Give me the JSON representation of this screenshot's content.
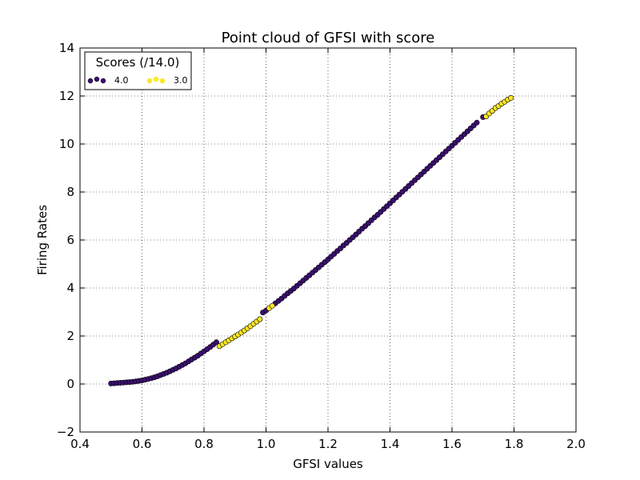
{
  "chart_data": {
    "type": "scatter",
    "title": "Point cloud of GFSI with score",
    "xlabel": "GFSI values",
    "ylabel": "Firing Rates",
    "xlim": [
      0.4,
      2.0
    ],
    "ylim": [
      -2,
      14
    ],
    "xticks": [
      "0.4",
      "0.6",
      "0.8",
      "1.0",
      "1.2",
      "1.4",
      "1.6",
      "1.8",
      "2.0"
    ],
    "yticks": [
      "−2",
      "0",
      "2",
      "4",
      "6",
      "8",
      "10",
      "12",
      "14"
    ],
    "grid": true,
    "legend": {
      "title": "Scores (/14.0)",
      "placement": "top-left",
      "entries": [
        {
          "label": "4.0",
          "color": "#3b0f70"
        },
        {
          "label": "3.0",
          "color": "#fde725"
        }
      ]
    },
    "series": [
      {
        "name": "4.0",
        "color": "#3b0f70",
        "x": [
          0.5,
          0.51,
          0.52,
          0.53,
          0.54,
          0.55,
          0.56,
          0.57,
          0.58,
          0.59,
          0.6,
          0.61,
          0.62,
          0.63,
          0.64,
          0.65,
          0.66,
          0.67,
          0.68,
          0.69,
          0.7,
          0.71,
          0.72,
          0.73,
          0.74,
          0.75,
          0.76,
          0.77,
          0.78,
          0.79,
          0.8,
          0.81,
          0.82,
          0.83,
          0.84,
          0.99,
          1.0,
          1.03,
          1.04,
          1.05,
          1.06,
          1.07,
          1.08,
          1.09,
          1.1,
          1.11,
          1.12,
          1.13,
          1.14,
          1.15,
          1.16,
          1.17,
          1.18,
          1.19,
          1.2,
          1.21,
          1.22,
          1.23,
          1.24,
          1.25,
          1.26,
          1.27,
          1.28,
          1.29,
          1.3,
          1.31,
          1.32,
          1.33,
          1.34,
          1.35,
          1.36,
          1.37,
          1.38,
          1.39,
          1.4,
          1.41,
          1.42,
          1.43,
          1.44,
          1.45,
          1.46,
          1.47,
          1.48,
          1.49,
          1.5,
          1.51,
          1.52,
          1.53,
          1.54,
          1.55,
          1.56,
          1.57,
          1.58,
          1.59,
          1.6,
          1.61,
          1.62,
          1.63,
          1.64,
          1.65,
          1.66,
          1.67,
          1.68,
          1.7
        ],
        "y": [
          0.02,
          0.03,
          0.04,
          0.05,
          0.06,
          0.07,
          0.08,
          0.09,
          0.11,
          0.13,
          0.15,
          0.18,
          0.21,
          0.24,
          0.28,
          0.32,
          0.37,
          0.42,
          0.47,
          0.53,
          0.59,
          0.65,
          0.72,
          0.79,
          0.86,
          0.94,
          1.02,
          1.1,
          1.18,
          1.27,
          1.36,
          1.45,
          1.54,
          1.64,
          1.74,
          2.98,
          3.06,
          3.36,
          3.46,
          3.56,
          3.67,
          3.78,
          3.88,
          3.98,
          4.09,
          4.2,
          4.31,
          4.42,
          4.53,
          4.64,
          4.75,
          4.86,
          4.97,
          5.08,
          5.19,
          5.31,
          5.42,
          5.54,
          5.65,
          5.77,
          5.88,
          6.0,
          6.11,
          6.23,
          6.35,
          6.47,
          6.58,
          6.7,
          6.82,
          6.94,
          7.05,
          7.17,
          7.29,
          7.41,
          7.53,
          7.65,
          7.77,
          7.89,
          8.01,
          8.13,
          8.25,
          8.37,
          8.49,
          8.61,
          8.73,
          8.85,
          8.97,
          9.09,
          9.21,
          9.33,
          9.45,
          9.57,
          9.69,
          9.81,
          9.93,
          10.05,
          10.17,
          10.29,
          10.41,
          10.53,
          10.65,
          10.77,
          10.89,
          11.12
        ]
      },
      {
        "name": "3.0",
        "color": "#fde725",
        "x": [
          0.85,
          0.86,
          0.87,
          0.88,
          0.89,
          0.9,
          0.91,
          0.92,
          0.93,
          0.94,
          0.95,
          0.96,
          0.97,
          0.98,
          1.01,
          1.02,
          1.71,
          1.72,
          1.73,
          1.74,
          1.75,
          1.76,
          1.77,
          1.78,
          1.79
        ],
        "y": [
          1.58,
          1.66,
          1.74,
          1.82,
          1.9,
          1.98,
          2.06,
          2.14,
          2.23,
          2.32,
          2.41,
          2.51,
          2.6,
          2.7,
          3.16,
          3.26,
          11.15,
          11.27,
          11.38,
          11.5,
          11.58,
          11.68,
          11.76,
          11.85,
          11.92
        ]
      }
    ]
  }
}
